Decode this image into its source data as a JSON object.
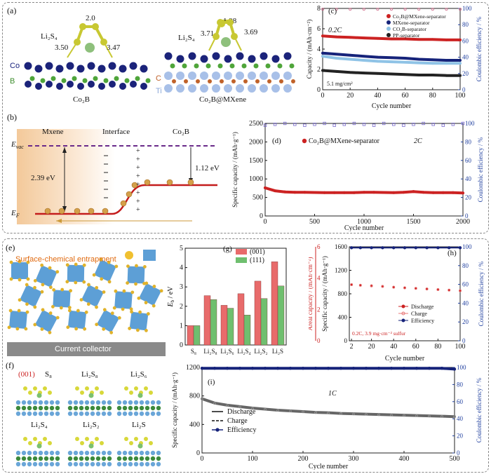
{
  "panels": {
    "a": {
      "tag": "(a)",
      "left_title": "Co₂B",
      "right_title": "Co₂B@MXene",
      "mol_label": "Li₂S₄",
      "left_bond_top": "2.0",
      "left_bond_l": "3.50",
      "left_bond_r": "3.47",
      "right_bond_top": "1.98",
      "right_bond_l": "3.71",
      "right_bond_r": "3.69",
      "atom_co": "Co",
      "atom_b": "B",
      "atom_c": "C",
      "atom_ti": "Ti"
    },
    "b": {
      "tag": "(b)",
      "mxene": "Mxene",
      "interface": "Interface",
      "co2b": "Co₂B",
      "evac": "E",
      "evac_sub": "vac",
      "ef": "E",
      "ef_sub": "F",
      "gap_left": "2.39 eV",
      "gap_right": "1.12 eV"
    },
    "e": {
      "tag": "(e)",
      "caption": "Surface-chemical entrapment",
      "collector": "Current collector"
    },
    "f": {
      "tag": "(f)",
      "facet": "(001)",
      "species": [
        "S₈",
        "Li₂S₈",
        "Li₂S₆",
        "Li₂S₄",
        "Li₂S₂",
        "Li₂S"
      ]
    }
  },
  "colors": {
    "red": "#cc2222",
    "navy": "#16237a",
    "lightblue": "#8fc3e6",
    "blue_axis": "#1f3f9e",
    "purple_eff": "#7b6bd0",
    "bar_red": "#e86b6b",
    "bar_green": "#6fbf6f"
  },
  "chart_data": [
    {
      "id": "c",
      "tag": "(c)",
      "type": "scatter",
      "rate_label": "0.2C",
      "loading_label": "5.1 mg/cm²",
      "xlabel": "Cycle number",
      "ylabel": "Capacity / (mAh·cm⁻²)",
      "y2label": "Coulombic efficiency / %",
      "xlim": [
        0,
        100
      ],
      "ylim": [
        0,
        8
      ],
      "y2lim": [
        0,
        100
      ],
      "xticks": [
        0,
        20,
        40,
        60,
        80,
        100
      ],
      "yticks": [
        0,
        2,
        4,
        6,
        8
      ],
      "y2ticks": [
        0,
        20,
        40,
        60,
        80,
        100
      ],
      "x": [
        0,
        10,
        20,
        30,
        40,
        50,
        60,
        70,
        80,
        90,
        100
      ],
      "series": [
        {
          "name": "Co₂B@MXene-separator",
          "color": "#cc2222",
          "values": [
            5.3,
            5.2,
            5.15,
            5.1,
            5.05,
            5.0,
            5.0,
            4.95,
            4.95,
            4.9,
            4.9
          ]
        },
        {
          "name": "MXene-separator",
          "color": "#16237a",
          "values": [
            3.6,
            3.5,
            3.4,
            3.3,
            3.2,
            3.15,
            3.1,
            3.0,
            2.95,
            2.9,
            2.9
          ]
        },
        {
          "name": "CO₂B-separator",
          "color": "#8fc3e6",
          "values": [
            3.3,
            3.1,
            3.0,
            2.9,
            2.8,
            2.75,
            2.7,
            2.65,
            2.6,
            2.6,
            2.6
          ]
        },
        {
          "name": "PP-separator",
          "color": "#222222",
          "values": [
            1.9,
            1.8,
            1.7,
            1.65,
            1.6,
            1.55,
            1.5,
            1.45,
            1.45,
            1.4,
            1.4
          ]
        }
      ],
      "efficiency": {
        "color": "#d06b8a",
        "values": [
          99,
          99,
          99,
          99,
          99,
          99,
          99,
          99,
          99,
          99,
          99
        ]
      },
      "legend_position": "top-right"
    },
    {
      "id": "d",
      "tag": "(d)",
      "type": "scatter",
      "rate_label": "2C",
      "xlabel": "Cycle number",
      "ylabel": "Specific capacity / (mAh·g⁻¹)",
      "y2label": "Coulombic efficiency / %",
      "xlim": [
        0,
        2000
      ],
      "ylim": [
        0,
        2500
      ],
      "y2lim": [
        0,
        100
      ],
      "xticks": [
        0,
        500,
        1000,
        1500,
        2000
      ],
      "yticks": [
        0,
        500,
        1000,
        1500,
        2000,
        2500
      ],
      "y2ticks": [
        0,
        20,
        40,
        60,
        80,
        100
      ],
      "x": [
        0,
        100,
        200,
        300,
        400,
        500,
        600,
        700,
        800,
        900,
        1000,
        1100,
        1200,
        1300,
        1400,
        1500,
        1600,
        1700,
        1800,
        1900,
        2000
      ],
      "series": [
        {
          "name": "Co₂B@MXene-separator",
          "color": "#cc2222",
          "values": [
            760,
            680,
            650,
            640,
            640,
            635,
            630,
            630,
            630,
            630,
            640,
            640,
            635,
            630,
            640,
            660,
            640,
            630,
            630,
            630,
            620
          ]
        }
      ],
      "efficiency": {
        "color": "#7b6bd0",
        "values": [
          98,
          99,
          100,
          99,
          98,
          99,
          100,
          98,
          99,
          100,
          99,
          98,
          100,
          99,
          98,
          99,
          100,
          99,
          98,
          99,
          100
        ]
      },
      "legend_position": "top-left"
    },
    {
      "id": "g",
      "tag": "(g)",
      "type": "bar",
      "ylabel": "E",
      "ylabel_sub": "b",
      "ylabel_unit": " / eV",
      "categories": [
        "S₈",
        "Li₂S₈",
        "Li₂S₆",
        "Li₂S₄",
        "Li₂S₂",
        "Li₂S"
      ],
      "ylim": [
        0,
        5
      ],
      "yticks": [
        0,
        1,
        2,
        3,
        4,
        5
      ],
      "series": [
        {
          "name": "(001)",
          "color": "#e86b6b",
          "values": [
            1.0,
            2.55,
            2.05,
            2.65,
            3.3,
            4.3
          ]
        },
        {
          "name": "(111)",
          "color": "#6fbf6f",
          "values": [
            1.0,
            2.35,
            1.9,
            1.55,
            2.4,
            3.05
          ]
        }
      ],
      "legend_position": "top-left"
    },
    {
      "id": "h",
      "tag": "(h)",
      "type": "scatter",
      "annotation": "0.2C, 3.9 mg·cm⁻² sulfur",
      "xlabel": "Cycle number",
      "ylabel": "Specific capacity / (mAh·g⁻¹)",
      "y3label": "Areal capacity / (mAh·cm⁻²)",
      "y2label": "Coulombic efficiency / %",
      "xlim": [
        0,
        100
      ],
      "ylim": [
        0,
        1600
      ],
      "y2lim": [
        0,
        100
      ],
      "y3lim": [
        0,
        6
      ],
      "xticks": [
        2,
        20,
        40,
        60,
        80,
        100
      ],
      "yticks": [
        0,
        400,
        800,
        1200,
        1600
      ],
      "y2ticks": [
        0,
        20,
        40,
        60,
        80,
        100
      ],
      "y3ticks": [
        0,
        2,
        4,
        6
      ],
      "x": [
        2,
        10,
        20,
        30,
        40,
        50,
        60,
        70,
        80,
        90,
        100
      ],
      "series": [
        {
          "name": "Discharge",
          "color": "#cc2222",
          "values": [
            960,
            950,
            940,
            930,
            915,
            905,
            895,
            885,
            875,
            865,
            855
          ]
        },
        {
          "name": "Charge",
          "color": "#e87878",
          "values": [
            955,
            945,
            935,
            925,
            912,
            902,
            892,
            882,
            872,
            862,
            852
          ]
        }
      ],
      "efficiency": {
        "name": "Efficiency",
        "color": "#16237a",
        "values": [
          99,
          99,
          99,
          99,
          99,
          99,
          99,
          99,
          99,
          99,
          99
        ]
      },
      "legend_position": "bottom-center"
    },
    {
      "id": "i",
      "tag": "(i)",
      "type": "scatter",
      "rate_label": "1C",
      "xlabel": "Cycle number",
      "ylabel": "Specific capacity / (mAh·g⁻¹)",
      "y2label": "Coulombic efficiency / %",
      "xlim": [
        0,
        500
      ],
      "ylim": [
        0,
        1200
      ],
      "y2lim": [
        0,
        100
      ],
      "xticks": [
        0,
        100,
        200,
        300,
        400,
        500
      ],
      "yticks": [
        0,
        400,
        800,
        1200
      ],
      "y2ticks": [
        0,
        20,
        40,
        60,
        80,
        100
      ],
      "x": [
        0,
        25,
        50,
        75,
        100,
        125,
        150,
        175,
        200,
        225,
        250,
        275,
        300,
        325,
        350,
        375,
        400,
        425,
        450,
        475,
        500
      ],
      "series": [
        {
          "name": "Discharge",
          "color": "#666666",
          "values": [
            760,
            700,
            670,
            650,
            630,
            615,
            600,
            590,
            580,
            570,
            565,
            555,
            550,
            545,
            540,
            535,
            530,
            525,
            520,
            515,
            510
          ]
        },
        {
          "name": "Charge",
          "color": "#999999",
          "values": [
            755,
            695,
            665,
            645,
            625,
            610,
            596,
            586,
            576,
            566,
            560,
            551,
            546,
            541,
            536,
            531,
            526,
            521,
            516,
            511,
            506
          ]
        }
      ],
      "efficiency": {
        "name": "Efficiency",
        "color": "#16237a",
        "values": [
          99,
          99,
          99,
          99,
          99,
          99,
          99,
          99,
          99,
          99,
          99,
          99,
          99,
          99,
          99,
          99,
          99,
          99,
          99,
          99,
          98
        ]
      },
      "legend_position": "center-left"
    }
  ]
}
